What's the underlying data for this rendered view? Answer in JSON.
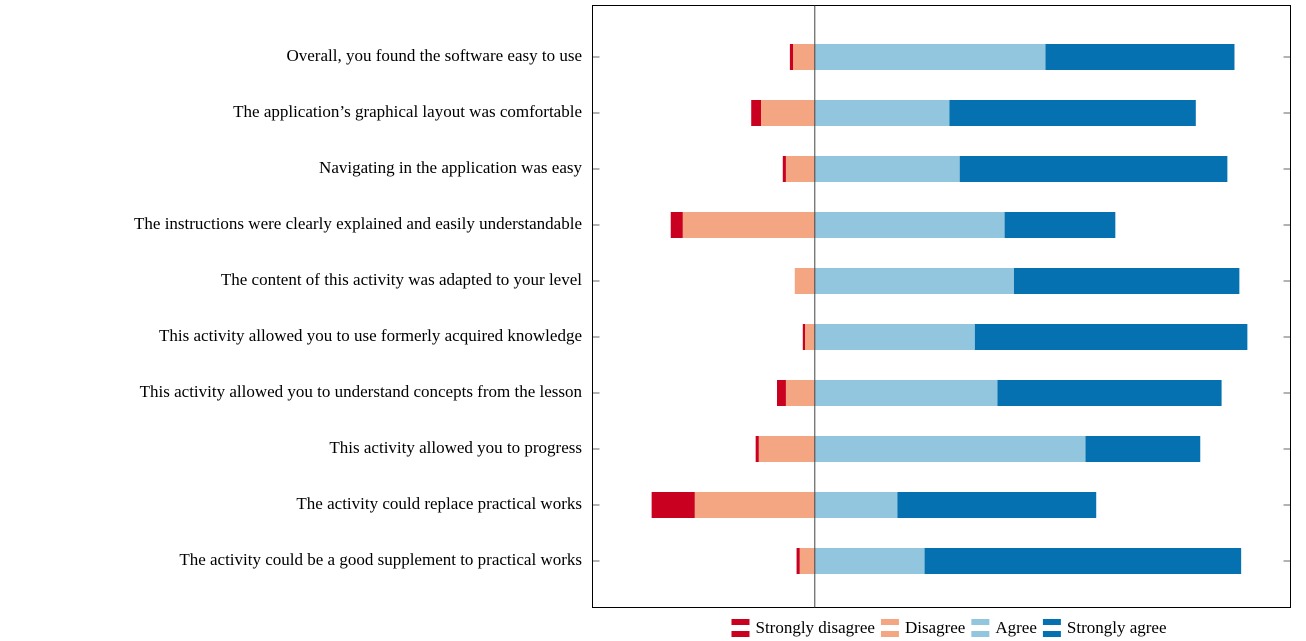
{
  "chart_data": {
    "type": "diverging-bar",
    "orientation": "horizontal",
    "categories": [
      "Overall, you found the software easy to use",
      "The application’s graphical layout was comfortable",
      "Navigating in the application was easy",
      "The instructions were clearly explained and easily understandable",
      "The content of this activity was adapted to your level",
      "This activity allowed you to use formerly acquired knowledge",
      "This activity allowed you to understand concepts from the lesson",
      "This activity allowed you to progress",
      "The activity could replace practical works",
      "The activity could be a good supplement to practical works"
    ],
    "series": [
      {
        "name": "Strongly disagree",
        "color": "#ca0020",
        "side": "left",
        "values": [
          0.7,
          2.2,
          0.7,
          2.7,
          0,
          0.5,
          2,
          0.7,
          9.7,
          0.7
        ]
      },
      {
        "name": "Disagree",
        "color": "#f4a582",
        "side": "left",
        "values": [
          4.9,
          12.1,
          6.5,
          29.7,
          4.5,
          2.2,
          6.5,
          12.6,
          27,
          3.4
        ]
      },
      {
        "name": "Agree",
        "color": "#92c5de",
        "side": "right",
        "values": [
          51.9,
          30.3,
          32.6,
          42.7,
          44.8,
          36,
          41.1,
          60.9,
          18.6,
          24.7
        ]
      },
      {
        "name": "Strongly agree",
        "color": "#0571b0",
        "side": "right",
        "values": [
          42.5,
          55.4,
          60.2,
          24.9,
          50.7,
          61.3,
          50.4,
          25.8,
          44.7,
          71.2
        ]
      }
    ],
    "xlim": [
      -50,
      107
    ],
    "legend": "bottom"
  }
}
